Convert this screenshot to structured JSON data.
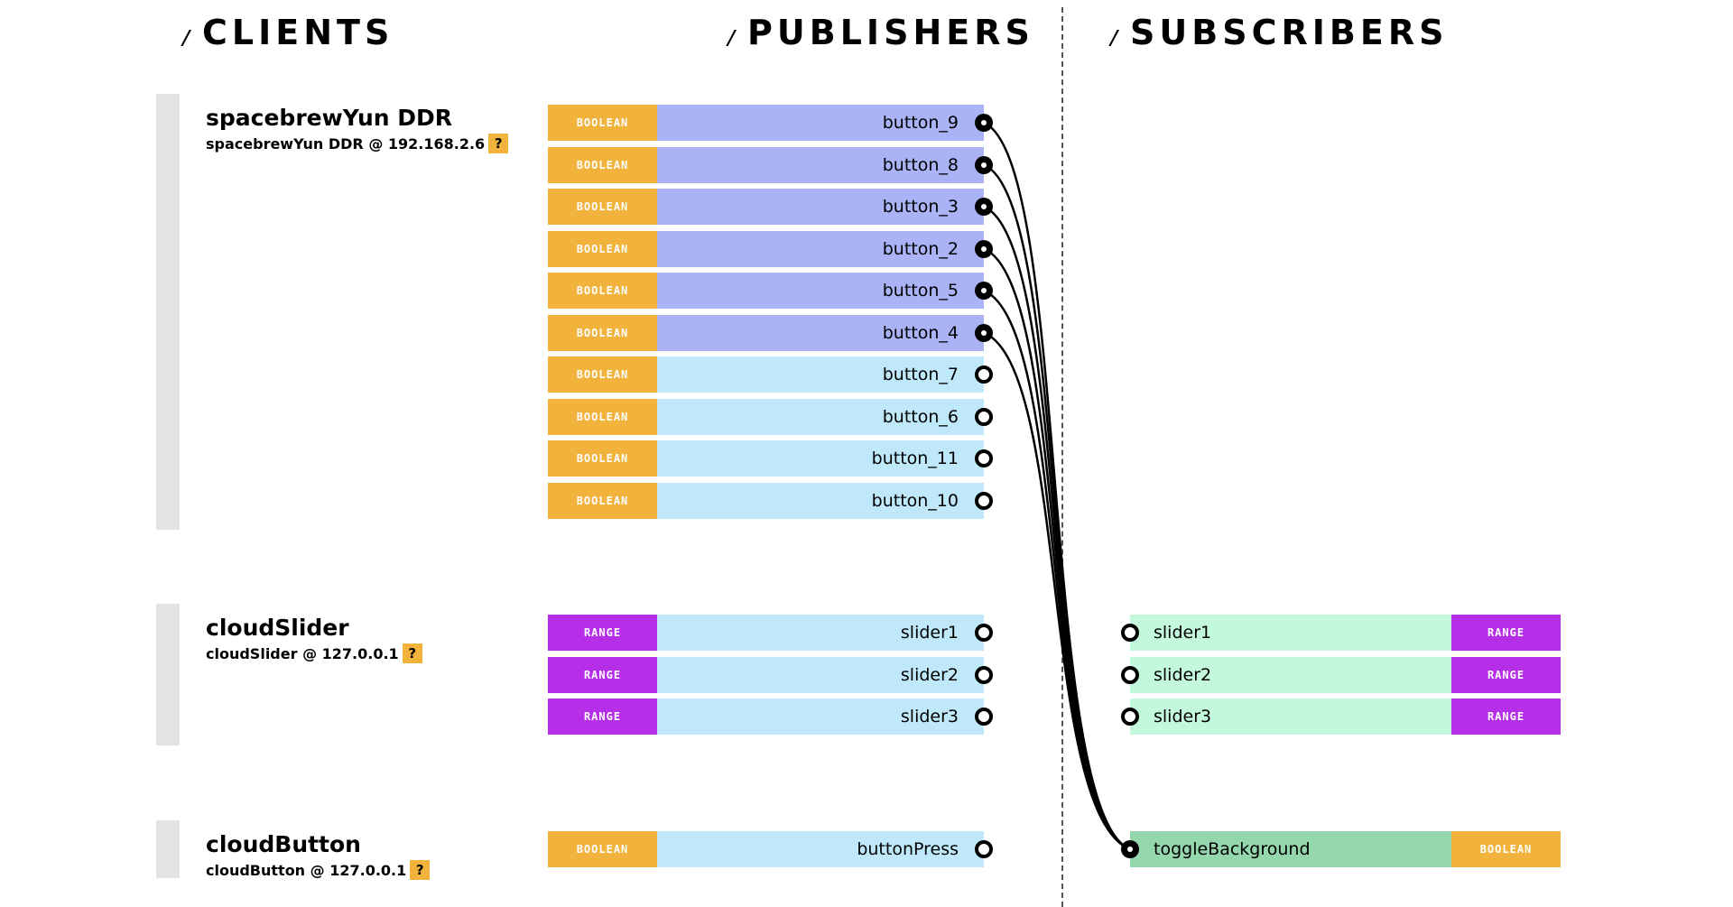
{
  "headers": {
    "slash": "/",
    "clients": "CLIENTS",
    "publishers": "PUBLISHERS",
    "subscribers": "SUBSCRIBERS"
  },
  "help_label": "?",
  "colors": {
    "boolean_badge": "#f2b33d",
    "range_badge": "#b62ee8",
    "publisher_routed": "#a9b3f6",
    "publisher_idle": "#bfe9fb",
    "subscriber_idle": "#c3f8dc",
    "subscriber_routed": "#94d7ad",
    "client_bar": "#e3e3e3"
  },
  "clients": [
    {
      "name": "spacebrewYun DDR",
      "address": "spacebrewYun DDR @ 192.168.2.6",
      "publishers": [
        {
          "type": "BOOLEAN",
          "name": "button_9",
          "routed": true
        },
        {
          "type": "BOOLEAN",
          "name": "button_8",
          "routed": true
        },
        {
          "type": "BOOLEAN",
          "name": "button_3",
          "routed": true
        },
        {
          "type": "BOOLEAN",
          "name": "button_2",
          "routed": true
        },
        {
          "type": "BOOLEAN",
          "name": "button_5",
          "routed": true
        },
        {
          "type": "BOOLEAN",
          "name": "button_4",
          "routed": true
        },
        {
          "type": "BOOLEAN",
          "name": "button_7",
          "routed": false
        },
        {
          "type": "BOOLEAN",
          "name": "button_6",
          "routed": false
        },
        {
          "type": "BOOLEAN",
          "name": "button_11",
          "routed": false
        },
        {
          "type": "BOOLEAN",
          "name": "button_10",
          "routed": false
        }
      ],
      "subscribers": []
    },
    {
      "name": "cloudSlider",
      "address": "cloudSlider @ 127.0.0.1",
      "publishers": [
        {
          "type": "RANGE",
          "name": "slider1",
          "routed": false
        },
        {
          "type": "RANGE",
          "name": "slider2",
          "routed": false
        },
        {
          "type": "RANGE",
          "name": "slider3",
          "routed": false
        }
      ],
      "subscribers": [
        {
          "type": "RANGE",
          "name": "slider1",
          "routed": false
        },
        {
          "type": "RANGE",
          "name": "slider2",
          "routed": false
        },
        {
          "type": "RANGE",
          "name": "slider3",
          "routed": false
        }
      ]
    },
    {
      "name": "cloudButton",
      "address": "cloudButton @ 127.0.0.1",
      "publishers": [
        {
          "type": "BOOLEAN",
          "name": "buttonPress",
          "routed": false
        }
      ],
      "subscribers": [
        {
          "type": "BOOLEAN",
          "name": "toggleBackground",
          "routed": true
        }
      ]
    }
  ],
  "routes": [
    {
      "from": "spacebrewYun DDR / button_9",
      "to": "cloudButton / toggleBackground"
    },
    {
      "from": "spacebrewYun DDR / button_8",
      "to": "cloudButton / toggleBackground"
    },
    {
      "from": "spacebrewYun DDR / button_3",
      "to": "cloudButton / toggleBackground"
    },
    {
      "from": "spacebrewYun DDR / button_2",
      "to": "cloudButton / toggleBackground"
    },
    {
      "from": "spacebrewYun DDR / button_5",
      "to": "cloudButton / toggleBackground"
    },
    {
      "from": "spacebrewYun DDR / button_4",
      "to": "cloudButton / toggleBackground"
    }
  ]
}
